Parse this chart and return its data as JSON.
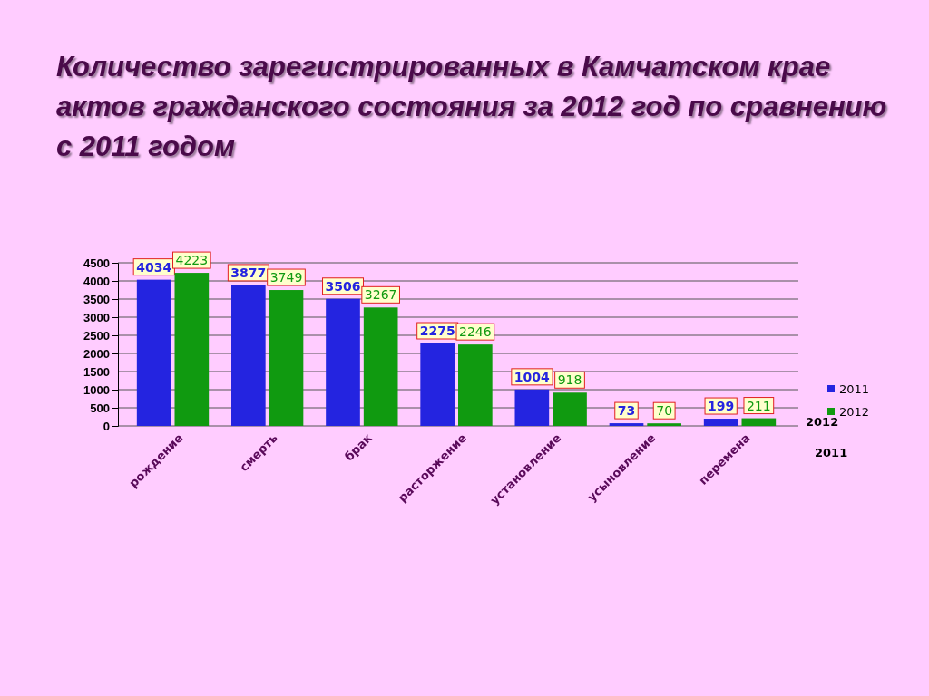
{
  "chart_data": {
    "type": "bar",
    "title": "Количество зарегистрированных в Камчатском крае актов гражданского состояния за 2012 год по сравнению с 2011 годом",
    "categories": [
      "рождение",
      "смерть",
      "брак",
      "расторжение",
      "установление",
      "усыновление",
      "перемена"
    ],
    "series": [
      {
        "name": "2011",
        "color": "#2424e0",
        "values": [
          4034,
          3877,
          3506,
          2275,
          1004,
          73,
          199
        ]
      },
      {
        "name": "2012",
        "color": "#109a10",
        "values": [
          4223,
          3749,
          3267,
          2246,
          918,
          70,
          211
        ]
      }
    ],
    "ylim": [
      0,
      4500
    ],
    "yticks": [
      0,
      500,
      1000,
      1500,
      2000,
      2500,
      3000,
      3500,
      4000,
      4500
    ],
    "grid": "y",
    "legend": "right",
    "data_labels": true,
    "annotations": [
      "2012",
      "2011"
    ]
  }
}
